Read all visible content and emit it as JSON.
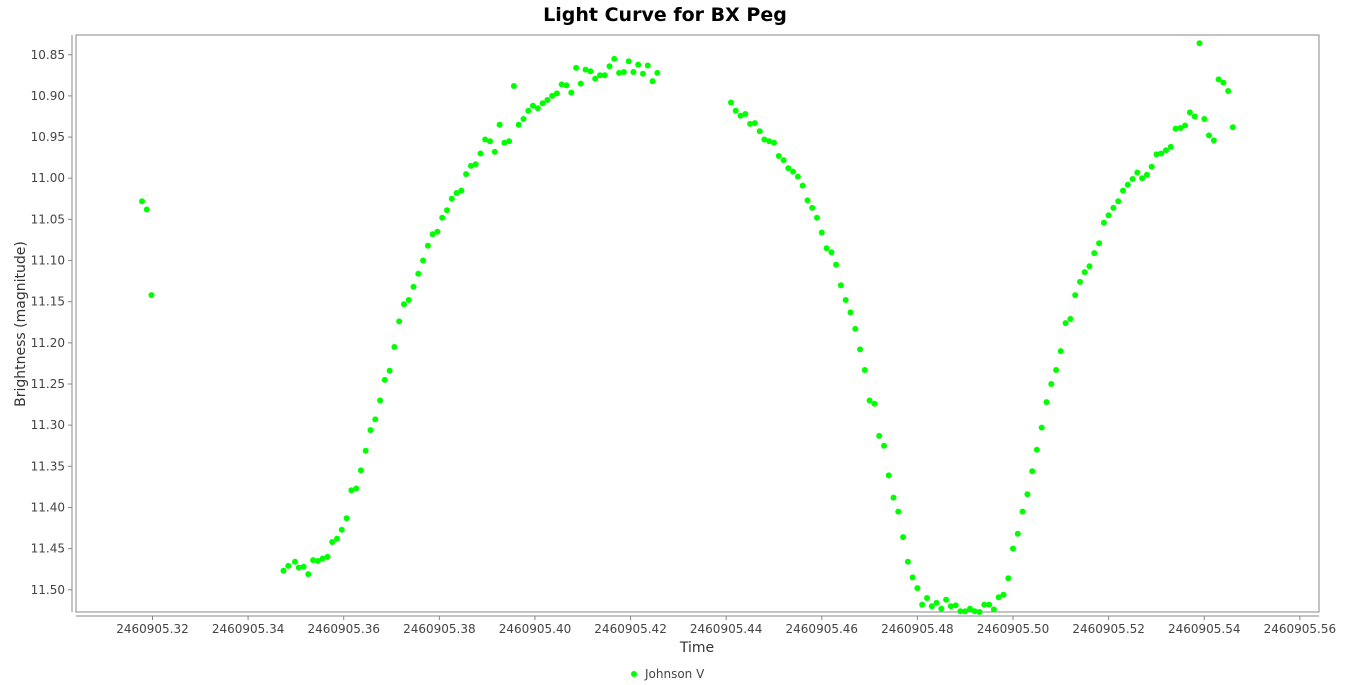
{
  "chart_data": {
    "type": "scatter",
    "title": "Light Curve for BX Peg",
    "xlabel": "Time",
    "ylabel": "Brightness (magnitude)",
    "xlim": [
      2460905.304,
      2460905.564
    ],
    "ylim": [
      11.527,
      10.826
    ],
    "y_inverted": true,
    "grid": false,
    "legend_position": "bottom-center",
    "x_ticks": [
      "2460905.32",
      "2460905.34",
      "2460905.36",
      "2460905.38",
      "2460905.40",
      "2460905.42",
      "2460905.44",
      "2460905.46",
      "2460905.48",
      "2460905.50",
      "2460905.52",
      "2460905.54",
      "2460905.56"
    ],
    "y_ticks": [
      "10.85",
      "10.90",
      "10.95",
      "11.00",
      "11.05",
      "11.10",
      "11.15",
      "11.20",
      "11.25",
      "11.30",
      "11.35",
      "11.40",
      "11.45",
      "11.50"
    ],
    "series": [
      {
        "name": "Johnson V",
        "color": "#00ff00",
        "points": [
          [
            2460905.3178,
            11.028
          ],
          [
            2460905.3188,
            11.038
          ],
          [
            2460905.3198,
            11.142
          ],
          [
            2460905.3474,
            11.477
          ],
          [
            2460905.3484,
            11.471
          ],
          [
            2460905.3498,
            11.466
          ],
          [
            2460905.3506,
            11.473
          ],
          [
            2460905.3516,
            11.472
          ],
          [
            2460905.3526,
            11.481
          ],
          [
            2460905.3536,
            11.464
          ],
          [
            2460905.3546,
            11.465
          ],
          [
            2460905.3556,
            11.462
          ],
          [
            2460905.3566,
            11.46
          ],
          [
            2460905.3576,
            11.442
          ],
          [
            2460905.3586,
            11.438
          ],
          [
            2460905.3596,
            11.427
          ],
          [
            2460905.3606,
            11.413
          ],
          [
            2460905.3616,
            11.379
          ],
          [
            2460905.3626,
            11.377
          ],
          [
            2460905.3636,
            11.355
          ],
          [
            2460905.3646,
            11.331
          ],
          [
            2460905.3656,
            11.306
          ],
          [
            2460905.3666,
            11.293
          ],
          [
            2460905.3676,
            11.27
          ],
          [
            2460905.3686,
            11.245
          ],
          [
            2460905.3696,
            11.234
          ],
          [
            2460905.3706,
            11.205
          ],
          [
            2460905.3716,
            11.174
          ],
          [
            2460905.3726,
            11.153
          ],
          [
            2460905.3736,
            11.148
          ],
          [
            2460905.3746,
            11.132
          ],
          [
            2460905.3756,
            11.116
          ],
          [
            2460905.3766,
            11.1
          ],
          [
            2460905.3776,
            11.082
          ],
          [
            2460905.3786,
            11.068
          ],
          [
            2460905.3796,
            11.065
          ],
          [
            2460905.3806,
            11.048
          ],
          [
            2460905.3816,
            11.039
          ],
          [
            2460905.3826,
            11.025
          ],
          [
            2460905.3836,
            11.018
          ],
          [
            2460905.3846,
            11.015
          ],
          [
            2460905.3856,
            10.995
          ],
          [
            2460905.3866,
            10.985
          ],
          [
            2460905.3876,
            10.983
          ],
          [
            2460905.3886,
            10.97
          ],
          [
            2460905.3896,
            10.953
          ],
          [
            2460905.3906,
            10.955
          ],
          [
            2460905.3916,
            10.968
          ],
          [
            2460905.3926,
            10.935
          ],
          [
            2460905.3936,
            10.957
          ],
          [
            2460905.3946,
            10.955
          ],
          [
            2460905.3956,
            10.888
          ],
          [
            2460905.3966,
            10.935
          ],
          [
            2460905.3976,
            10.928
          ],
          [
            2460905.3986,
            10.918
          ],
          [
            2460905.3996,
            10.912
          ],
          [
            2460905.4006,
            10.915
          ],
          [
            2460905.4016,
            10.909
          ],
          [
            2460905.4026,
            10.905
          ],
          [
            2460905.4036,
            10.9
          ],
          [
            2460905.4046,
            10.897
          ],
          [
            2460905.4056,
            10.886
          ],
          [
            2460905.4066,
            10.887
          ],
          [
            2460905.4076,
            10.896
          ],
          [
            2460905.4086,
            10.866
          ],
          [
            2460905.4096,
            10.885
          ],
          [
            2460905.4106,
            10.868
          ],
          [
            2460905.4116,
            10.87
          ],
          [
            2460905.4126,
            10.879
          ],
          [
            2460905.4136,
            10.875
          ],
          [
            2460905.4146,
            10.875
          ],
          [
            2460905.4156,
            10.864
          ],
          [
            2460905.4166,
            10.855
          ],
          [
            2460905.4176,
            10.872
          ],
          [
            2460905.4186,
            10.871
          ],
          [
            2460905.4196,
            10.858
          ],
          [
            2460905.4206,
            10.871
          ],
          [
            2460905.4216,
            10.862
          ],
          [
            2460905.4226,
            10.873
          ],
          [
            2460905.4236,
            10.863
          ],
          [
            2460905.4246,
            10.882
          ],
          [
            2460905.4256,
            10.872
          ],
          [
            2460905.441,
            10.908
          ],
          [
            2460905.442,
            10.918
          ],
          [
            2460905.443,
            10.924
          ],
          [
            2460905.444,
            10.922
          ],
          [
            2460905.445,
            10.934
          ],
          [
            2460905.446,
            10.933
          ],
          [
            2460905.447,
            10.943
          ],
          [
            2460905.448,
            10.953
          ],
          [
            2460905.449,
            10.955
          ],
          [
            2460905.45,
            10.957
          ],
          [
            2460905.451,
            10.973
          ],
          [
            2460905.452,
            10.978
          ],
          [
            2460905.453,
            10.988
          ],
          [
            2460905.454,
            10.992
          ],
          [
            2460905.455,
            10.998
          ],
          [
            2460905.456,
            11.009
          ],
          [
            2460905.457,
            11.027
          ],
          [
            2460905.458,
            11.036
          ],
          [
            2460905.459,
            11.048
          ],
          [
            2460905.46,
            11.066
          ],
          [
            2460905.461,
            11.085
          ],
          [
            2460905.462,
            11.09
          ],
          [
            2460905.463,
            11.105
          ],
          [
            2460905.464,
            11.13
          ],
          [
            2460905.465,
            11.148
          ],
          [
            2460905.466,
            11.163
          ],
          [
            2460905.467,
            11.183
          ],
          [
            2460905.468,
            11.208
          ],
          [
            2460905.469,
            11.233
          ],
          [
            2460905.47,
            11.27
          ],
          [
            2460905.471,
            11.274
          ],
          [
            2460905.472,
            11.313
          ],
          [
            2460905.473,
            11.325
          ],
          [
            2460905.474,
            11.361
          ],
          [
            2460905.475,
            11.388
          ],
          [
            2460905.476,
            11.405
          ],
          [
            2460905.477,
            11.436
          ],
          [
            2460905.478,
            11.466
          ],
          [
            2460905.479,
            11.485
          ],
          [
            2460905.48,
            11.498
          ],
          [
            2460905.481,
            11.518
          ],
          [
            2460905.482,
            11.51
          ],
          [
            2460905.483,
            11.52
          ],
          [
            2460905.484,
            11.516
          ],
          [
            2460905.485,
            11.523
          ],
          [
            2460905.486,
            11.512
          ],
          [
            2460905.487,
            11.52
          ],
          [
            2460905.488,
            11.519
          ],
          [
            2460905.489,
            11.526
          ],
          [
            2460905.49,
            11.526
          ],
          [
            2460905.491,
            11.523
          ],
          [
            2460905.492,
            11.526
          ],
          [
            2460905.493,
            11.527
          ],
          [
            2460905.494,
            11.518
          ],
          [
            2460905.495,
            11.518
          ],
          [
            2460905.496,
            11.524
          ],
          [
            2460905.497,
            11.509
          ],
          [
            2460905.498,
            11.506
          ],
          [
            2460905.499,
            11.486
          ],
          [
            2460905.5,
            11.45
          ],
          [
            2460905.501,
            11.432
          ],
          [
            2460905.502,
            11.405
          ],
          [
            2460905.503,
            11.384
          ],
          [
            2460905.504,
            11.356
          ],
          [
            2460905.505,
            11.33
          ],
          [
            2460905.506,
            11.303
          ],
          [
            2460905.507,
            11.272
          ],
          [
            2460905.508,
            11.25
          ],
          [
            2460905.509,
            11.233
          ],
          [
            2460905.51,
            11.21
          ],
          [
            2460905.511,
            11.176
          ],
          [
            2460905.512,
            11.171
          ],
          [
            2460905.513,
            11.142
          ],
          [
            2460905.514,
            11.126
          ],
          [
            2460905.515,
            11.114
          ],
          [
            2460905.516,
            11.107
          ],
          [
            2460905.517,
            11.091
          ],
          [
            2460905.518,
            11.079
          ],
          [
            2460905.519,
            11.054
          ],
          [
            2460905.52,
            11.045
          ],
          [
            2460905.521,
            11.036
          ],
          [
            2460905.522,
            11.028
          ],
          [
            2460905.523,
            11.015
          ],
          [
            2460905.524,
            11.008
          ],
          [
            2460905.525,
            11.001
          ],
          [
            2460905.526,
            10.993
          ],
          [
            2460905.527,
            11.0
          ],
          [
            2460905.528,
            10.996
          ],
          [
            2460905.529,
            10.986
          ],
          [
            2460905.53,
            10.971
          ],
          [
            2460905.531,
            10.97
          ],
          [
            2460905.532,
            10.966
          ],
          [
            2460905.533,
            10.962
          ],
          [
            2460905.534,
            10.94
          ],
          [
            2460905.535,
            10.939
          ],
          [
            2460905.536,
            10.936
          ],
          [
            2460905.537,
            10.92
          ],
          [
            2460905.538,
            10.925
          ],
          [
            2460905.539,
            10.836
          ],
          [
            2460905.54,
            10.928
          ],
          [
            2460905.541,
            10.948
          ],
          [
            2460905.542,
            10.954
          ],
          [
            2460905.543,
            10.88
          ],
          [
            2460905.544,
            10.884
          ],
          [
            2460905.545,
            10.894
          ],
          [
            2460905.546,
            10.938
          ]
        ]
      }
    ]
  }
}
